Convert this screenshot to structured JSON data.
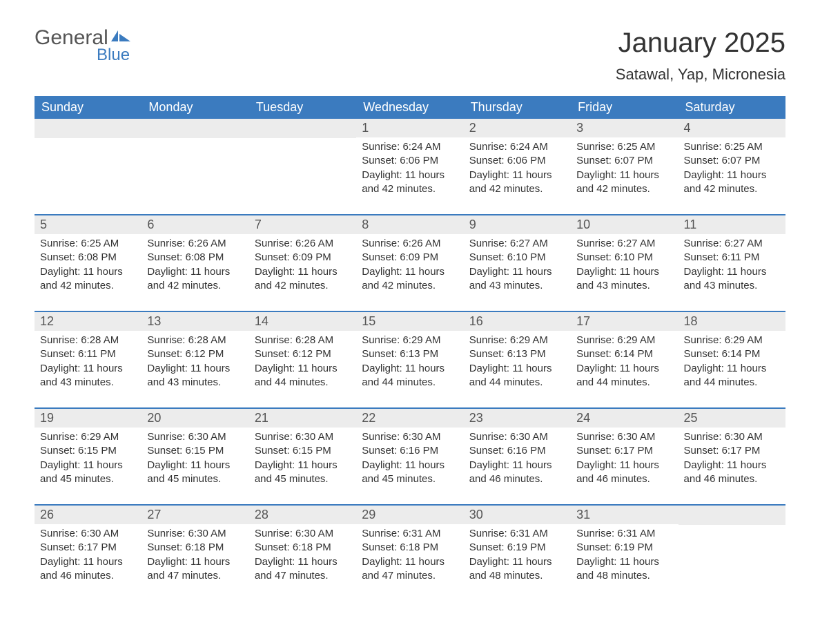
{
  "logo": {
    "text1": "General",
    "text2": "Blue"
  },
  "title": "January 2025",
  "subtitle": "Satawal, Yap, Micronesia",
  "colors": {
    "header_bg": "#3b7bbf",
    "header_text": "#ffffff",
    "daynum_bg": "#ececec",
    "body_bg": "#ffffff",
    "text": "#333333"
  },
  "day_headers": [
    "Sunday",
    "Monday",
    "Tuesday",
    "Wednesday",
    "Thursday",
    "Friday",
    "Saturday"
  ],
  "weeks": [
    [
      {
        "blank": true
      },
      {
        "blank": true
      },
      {
        "blank": true
      },
      {
        "day": "1",
        "sunrise": "Sunrise: 6:24 AM",
        "sunset": "Sunset: 6:06 PM",
        "daylight": "Daylight: 11 hours and 42 minutes."
      },
      {
        "day": "2",
        "sunrise": "Sunrise: 6:24 AM",
        "sunset": "Sunset: 6:06 PM",
        "daylight": "Daylight: 11 hours and 42 minutes."
      },
      {
        "day": "3",
        "sunrise": "Sunrise: 6:25 AM",
        "sunset": "Sunset: 6:07 PM",
        "daylight": "Daylight: 11 hours and 42 minutes."
      },
      {
        "day": "4",
        "sunrise": "Sunrise: 6:25 AM",
        "sunset": "Sunset: 6:07 PM",
        "daylight": "Daylight: 11 hours and 42 minutes."
      }
    ],
    [
      {
        "day": "5",
        "sunrise": "Sunrise: 6:25 AM",
        "sunset": "Sunset: 6:08 PM",
        "daylight": "Daylight: 11 hours and 42 minutes."
      },
      {
        "day": "6",
        "sunrise": "Sunrise: 6:26 AM",
        "sunset": "Sunset: 6:08 PM",
        "daylight": "Daylight: 11 hours and 42 minutes."
      },
      {
        "day": "7",
        "sunrise": "Sunrise: 6:26 AM",
        "sunset": "Sunset: 6:09 PM",
        "daylight": "Daylight: 11 hours and 42 minutes."
      },
      {
        "day": "8",
        "sunrise": "Sunrise: 6:26 AM",
        "sunset": "Sunset: 6:09 PM",
        "daylight": "Daylight: 11 hours and 42 minutes."
      },
      {
        "day": "9",
        "sunrise": "Sunrise: 6:27 AM",
        "sunset": "Sunset: 6:10 PM",
        "daylight": "Daylight: 11 hours and 43 minutes."
      },
      {
        "day": "10",
        "sunrise": "Sunrise: 6:27 AM",
        "sunset": "Sunset: 6:10 PM",
        "daylight": "Daylight: 11 hours and 43 minutes."
      },
      {
        "day": "11",
        "sunrise": "Sunrise: 6:27 AM",
        "sunset": "Sunset: 6:11 PM",
        "daylight": "Daylight: 11 hours and 43 minutes."
      }
    ],
    [
      {
        "day": "12",
        "sunrise": "Sunrise: 6:28 AM",
        "sunset": "Sunset: 6:11 PM",
        "daylight": "Daylight: 11 hours and 43 minutes."
      },
      {
        "day": "13",
        "sunrise": "Sunrise: 6:28 AM",
        "sunset": "Sunset: 6:12 PM",
        "daylight": "Daylight: 11 hours and 43 minutes."
      },
      {
        "day": "14",
        "sunrise": "Sunrise: 6:28 AM",
        "sunset": "Sunset: 6:12 PM",
        "daylight": "Daylight: 11 hours and 44 minutes."
      },
      {
        "day": "15",
        "sunrise": "Sunrise: 6:29 AM",
        "sunset": "Sunset: 6:13 PM",
        "daylight": "Daylight: 11 hours and 44 minutes."
      },
      {
        "day": "16",
        "sunrise": "Sunrise: 6:29 AM",
        "sunset": "Sunset: 6:13 PM",
        "daylight": "Daylight: 11 hours and 44 minutes."
      },
      {
        "day": "17",
        "sunrise": "Sunrise: 6:29 AM",
        "sunset": "Sunset: 6:14 PM",
        "daylight": "Daylight: 11 hours and 44 minutes."
      },
      {
        "day": "18",
        "sunrise": "Sunrise: 6:29 AM",
        "sunset": "Sunset: 6:14 PM",
        "daylight": "Daylight: 11 hours and 44 minutes."
      }
    ],
    [
      {
        "day": "19",
        "sunrise": "Sunrise: 6:29 AM",
        "sunset": "Sunset: 6:15 PM",
        "daylight": "Daylight: 11 hours and 45 minutes."
      },
      {
        "day": "20",
        "sunrise": "Sunrise: 6:30 AM",
        "sunset": "Sunset: 6:15 PM",
        "daylight": "Daylight: 11 hours and 45 minutes."
      },
      {
        "day": "21",
        "sunrise": "Sunrise: 6:30 AM",
        "sunset": "Sunset: 6:15 PM",
        "daylight": "Daylight: 11 hours and 45 minutes."
      },
      {
        "day": "22",
        "sunrise": "Sunrise: 6:30 AM",
        "sunset": "Sunset: 6:16 PM",
        "daylight": "Daylight: 11 hours and 45 minutes."
      },
      {
        "day": "23",
        "sunrise": "Sunrise: 6:30 AM",
        "sunset": "Sunset: 6:16 PM",
        "daylight": "Daylight: 11 hours and 46 minutes."
      },
      {
        "day": "24",
        "sunrise": "Sunrise: 6:30 AM",
        "sunset": "Sunset: 6:17 PM",
        "daylight": "Daylight: 11 hours and 46 minutes."
      },
      {
        "day": "25",
        "sunrise": "Sunrise: 6:30 AM",
        "sunset": "Sunset: 6:17 PM",
        "daylight": "Daylight: 11 hours and 46 minutes."
      }
    ],
    [
      {
        "day": "26",
        "sunrise": "Sunrise: 6:30 AM",
        "sunset": "Sunset: 6:17 PM",
        "daylight": "Daylight: 11 hours and 46 minutes."
      },
      {
        "day": "27",
        "sunrise": "Sunrise: 6:30 AM",
        "sunset": "Sunset: 6:18 PM",
        "daylight": "Daylight: 11 hours and 47 minutes."
      },
      {
        "day": "28",
        "sunrise": "Sunrise: 6:30 AM",
        "sunset": "Sunset: 6:18 PM",
        "daylight": "Daylight: 11 hours and 47 minutes."
      },
      {
        "day": "29",
        "sunrise": "Sunrise: 6:31 AM",
        "sunset": "Sunset: 6:18 PM",
        "daylight": "Daylight: 11 hours and 47 minutes."
      },
      {
        "day": "30",
        "sunrise": "Sunrise: 6:31 AM",
        "sunset": "Sunset: 6:19 PM",
        "daylight": "Daylight: 11 hours and 48 minutes."
      },
      {
        "day": "31",
        "sunrise": "Sunrise: 6:31 AM",
        "sunset": "Sunset: 6:19 PM",
        "daylight": "Daylight: 11 hours and 48 minutes."
      },
      {
        "blank": true
      }
    ]
  ]
}
